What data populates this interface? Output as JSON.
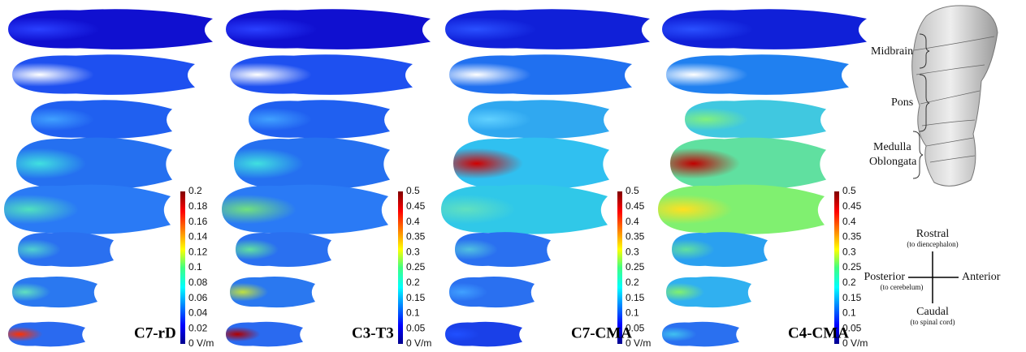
{
  "panels": [
    {
      "label": "C7-rD",
      "colorbar_ticks": [
        "0.2",
        "0.18",
        "0.16",
        "0.14",
        "0.12",
        "0.1",
        "0.08",
        "0.06",
        "0.04",
        "0.02",
        "0 V/m"
      ]
    },
    {
      "label": "C3-T3",
      "colorbar_ticks": [
        "0.5",
        "0.45",
        "0.4",
        "0.35",
        "0.3",
        "0.25",
        "0.2",
        "0.15",
        "0.1",
        "0.05",
        "0 V/m"
      ]
    },
    {
      "label": "C7-CMA",
      "colorbar_ticks": [
        "0.5",
        "0.45",
        "0.4",
        "0.35",
        "0.3",
        "0.25",
        "0.2",
        "0.15",
        "0.1",
        "0.05",
        "0 V/m"
      ]
    },
    {
      "label": "C4-CMA",
      "colorbar_ticks": [
        "0.5",
        "0.45",
        "0.4",
        "0.35",
        "0.3",
        "0.25",
        "0.2",
        "0.15",
        "0.1",
        "0.05",
        "0 V/m"
      ]
    }
  ],
  "anatomy": {
    "midbrain": "Midbrain",
    "pons": "Pons",
    "medulla": [
      "Medulla",
      "Oblongata"
    ]
  },
  "compass": {
    "rostral": "Rostral",
    "rostral_note": "(to diencephalon)",
    "posterior": "Posterior",
    "posterior_note": "(to cerebelum)",
    "anterior": "Anterior",
    "caudal": "Caudal",
    "caudal_note": "(to spinal cord)"
  }
}
